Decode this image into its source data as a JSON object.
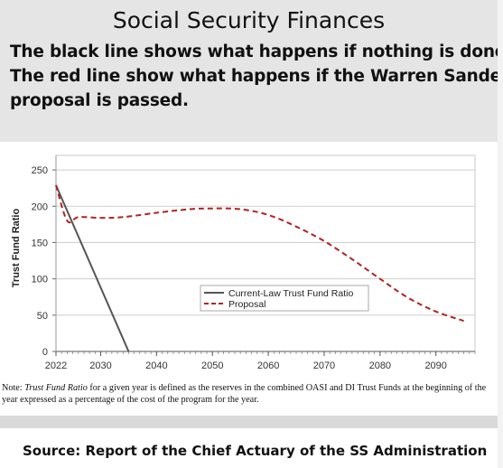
{
  "header": {
    "title": "Social Security Finances",
    "line1": "The black line shows what happens if nothing is done.",
    "line2": "The red line show what happens if the Warren Sanders",
    "line3": "proposal is passed."
  },
  "chart_data": {
    "type": "line",
    "title": "",
    "xlabel": "",
    "ylabel": "Trust Fund Ratio",
    "xlim": [
      2022,
      2097
    ],
    "ylim": [
      0,
      270
    ],
    "x_ticks": [
      2022,
      2030,
      2040,
      2050,
      2060,
      2070,
      2080,
      2090
    ],
    "y_ticks": [
      0,
      50,
      100,
      150,
      200,
      250
    ],
    "grid": true,
    "legend": "center",
    "series": [
      {
        "name": "Current-Law Trust Fund Ratio",
        "color": "#555555",
        "style": "solid",
        "x": [
          2022,
          2035
        ],
        "y": [
          229,
          0
        ]
      },
      {
        "name": "Proposal",
        "color": "#b22222",
        "style": "dashed",
        "x": [
          2022,
          2024,
          2026,
          2030,
          2034,
          2040,
          2046,
          2050,
          2055,
          2060,
          2065,
          2070,
          2075,
          2080,
          2085,
          2090,
          2095
        ],
        "y": [
          229,
          180,
          185,
          184,
          185,
          191,
          196,
          197,
          196,
          188,
          172,
          152,
          127,
          100,
          74,
          55,
          42
        ]
      }
    ]
  },
  "note": {
    "prefix": "Note: ",
    "term": "Trust Fund Ratio",
    "text": " for a given year is defined as the reserves in the combined OASI and DI Trust Funds at the beginning of the year expressed as a percentage of the cost of the program for the year."
  },
  "footer": {
    "source": "Source: Report of the Chief Actuary of the  SS Administration"
  }
}
